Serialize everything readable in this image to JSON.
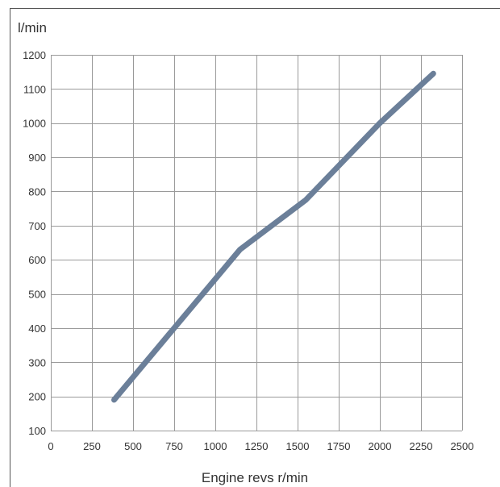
{
  "chart_data": {
    "type": "line",
    "xlabel": "Engine revs r/min",
    "ylabel": "l/min",
    "xlim": [
      0,
      2500
    ],
    "ylim": [
      100,
      1200
    ],
    "xticks": [
      0,
      250,
      500,
      750,
      1000,
      1250,
      1500,
      1750,
      2000,
      2250,
      2500
    ],
    "yticks": [
      100,
      200,
      300,
      400,
      500,
      600,
      700,
      800,
      900,
      1000,
      1100,
      1200
    ],
    "grid": true,
    "series": [
      {
        "color": "#6b7f99",
        "x": [
          385,
          750,
          1150,
          1550,
          2000,
          2325
        ],
        "y": [
          190,
          400,
          630,
          775,
          1000,
          1145
        ]
      }
    ]
  }
}
